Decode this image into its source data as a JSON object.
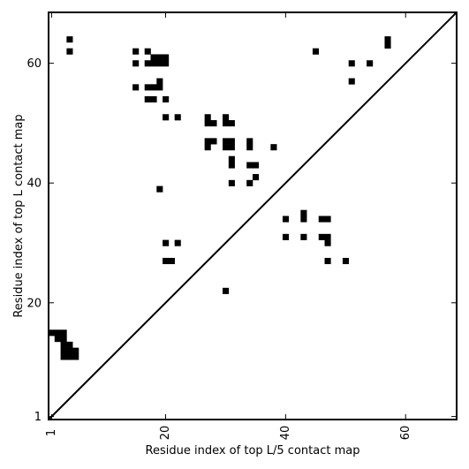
{
  "chart_data": {
    "type": "heatmap",
    "title": "",
    "xlabel": "Residue index of top L/5 contact map",
    "ylabel": "Residue index of top L contact map",
    "xlim": [
      0.5,
      68.5
    ],
    "ylim": [
      0.5,
      68.5
    ],
    "xticks": [
      1,
      20,
      40,
      60
    ],
    "yticks": [
      1,
      20,
      40,
      60
    ],
    "grid": false,
    "diagonal_line": true,
    "colors": {
      "contact": "#000000",
      "background": "#ffffff",
      "axes": "#000000"
    },
    "lower_triangle": [
      [
        1,
        15
      ],
      [
        2,
        15
      ],
      [
        3,
        15
      ],
      [
        2,
        14
      ],
      [
        3,
        14
      ],
      [
        3,
        13
      ],
      [
        4,
        13
      ],
      [
        3,
        12
      ],
      [
        4,
        12
      ],
      [
        5,
        12
      ],
      [
        3,
        11
      ],
      [
        4,
        11
      ],
      [
        5,
        11
      ]
    ],
    "upper_triangle": [
      [
        4,
        64
      ],
      [
        4,
        62
      ],
      [
        15,
        62
      ],
      [
        17,
        62
      ],
      [
        15,
        60
      ],
      [
        17,
        60
      ],
      [
        18,
        61
      ],
      [
        19,
        61
      ],
      [
        20,
        61
      ],
      [
        18,
        60
      ],
      [
        19,
        60
      ],
      [
        20,
        60
      ],
      [
        15,
        56
      ],
      [
        17,
        56
      ],
      [
        18,
        56
      ],
      [
        19,
        57
      ],
      [
        19,
        56
      ],
      [
        17,
        54
      ],
      [
        18,
        54
      ],
      [
        20,
        54
      ],
      [
        20,
        51
      ],
      [
        22,
        51
      ],
      [
        27,
        51
      ],
      [
        27,
        50
      ],
      [
        28,
        50
      ],
      [
        30,
        51
      ],
      [
        30,
        50
      ],
      [
        31,
        50
      ],
      [
        27,
        47
      ],
      [
        28,
        47
      ],
      [
        27,
        46
      ],
      [
        30,
        47
      ],
      [
        31,
        47
      ],
      [
        30,
        46
      ],
      [
        31,
        46
      ],
      [
        34,
        47
      ],
      [
        34,
        46
      ],
      [
        38,
        46
      ],
      [
        31,
        44
      ],
      [
        31,
        43
      ],
      [
        34,
        43
      ],
      [
        35,
        43
      ],
      [
        35,
        41
      ],
      [
        31,
        40
      ],
      [
        34,
        40
      ],
      [
        19,
        39
      ],
      [
        40,
        34
      ],
      [
        43,
        35
      ],
      [
        43,
        34
      ],
      [
        46,
        34
      ],
      [
        47,
        34
      ],
      [
        40,
        31
      ],
      [
        43,
        31
      ],
      [
        46,
        31
      ],
      [
        47,
        31
      ],
      [
        47,
        30
      ],
      [
        20,
        30
      ],
      [
        22,
        30
      ],
      [
        20,
        27
      ],
      [
        21,
        27
      ],
      [
        47,
        27
      ],
      [
        50,
        27
      ],
      [
        30,
        22
      ],
      [
        45,
        62
      ],
      [
        51,
        60
      ],
      [
        54,
        60
      ],
      [
        51,
        57
      ],
      [
        57,
        64
      ],
      [
        57,
        63
      ]
    ]
  }
}
